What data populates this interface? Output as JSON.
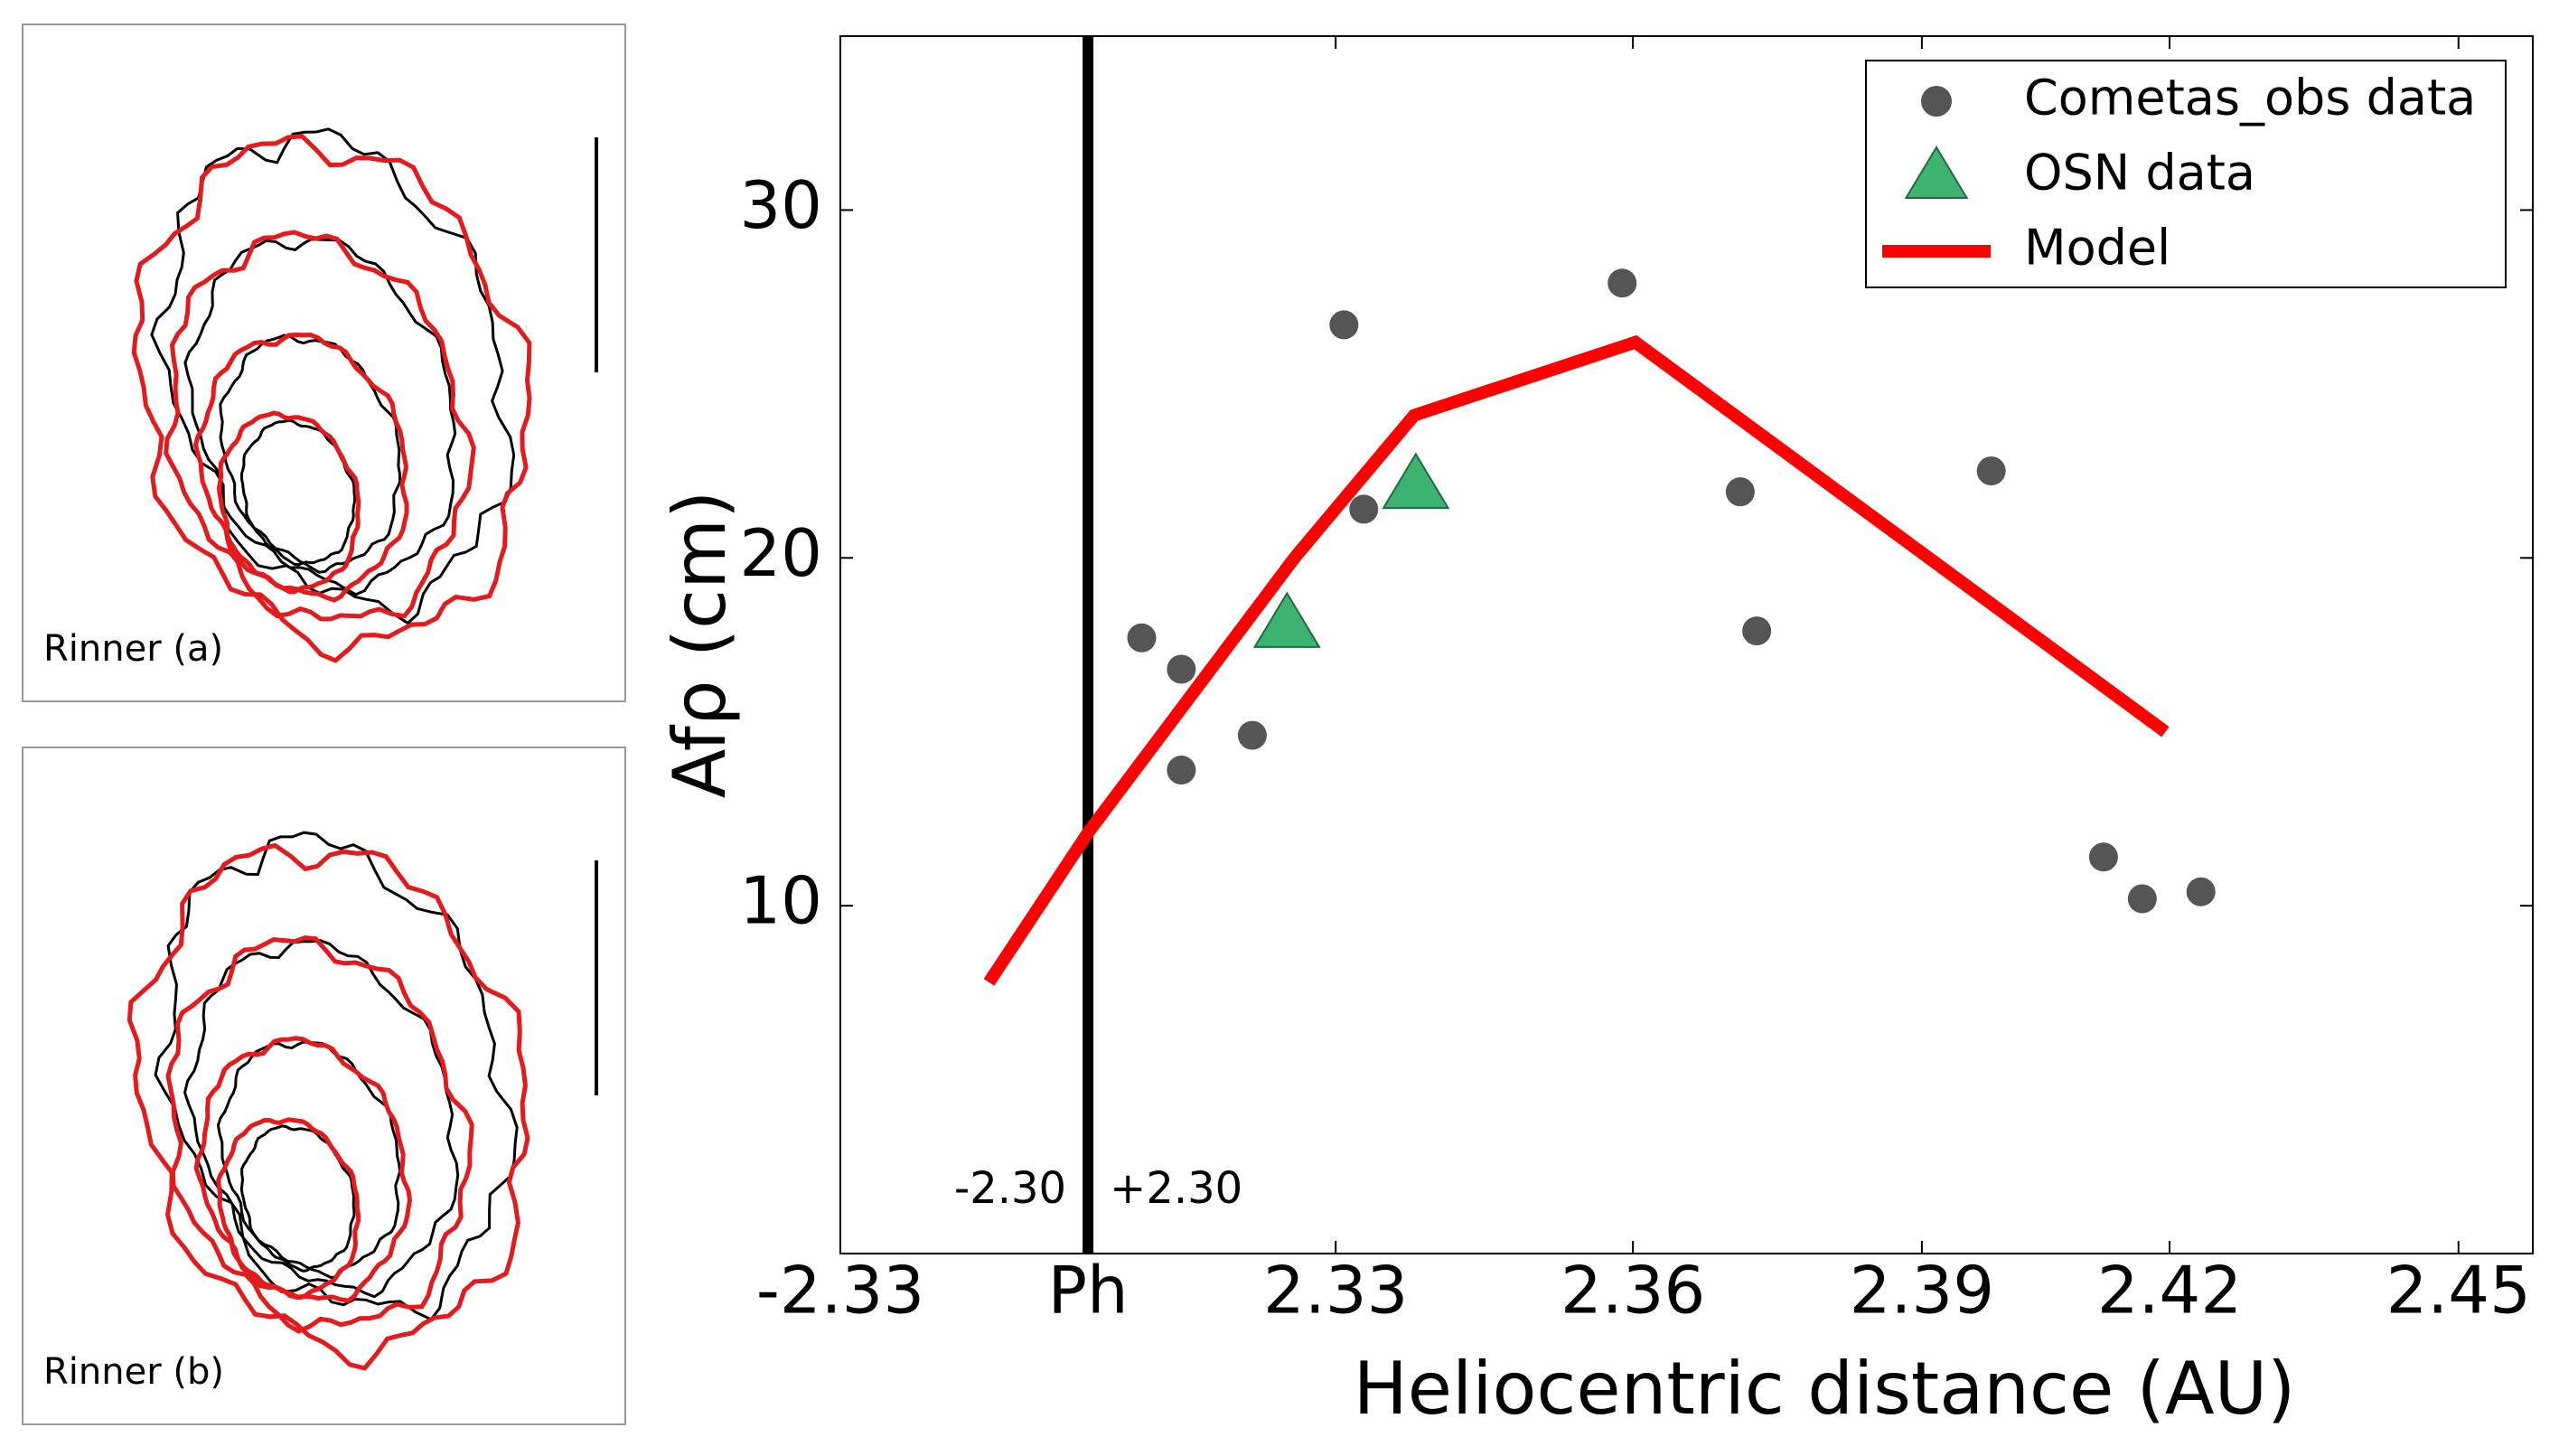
{
  "panels": [
    {
      "label": "Rinner (a)"
    },
    {
      "label": "Rinner (b)"
    }
  ],
  "chart_data": {
    "type": "scatter",
    "xlabel": "Heliocentric distance (AU)",
    "ylabel": "Afρ (cm)",
    "xlim": [
      -0.03,
      0.175
    ],
    "xticks": [
      {
        "value": -0.03,
        "label": "-2.33"
      },
      {
        "value": 0,
        "label": "Ph"
      },
      {
        "value": 0.03,
        "label": "2.33"
      },
      {
        "value": 0.066,
        "label": "2.36"
      },
      {
        "value": 0.101,
        "label": "2.39"
      },
      {
        "value": 0.131,
        "label": "2.42"
      },
      {
        "value": 0.166,
        "label": "2.45"
      }
    ],
    "ylim": [
      0,
      35
    ],
    "yticks": [
      10,
      20,
      30
    ],
    "perihelion": {
      "x": 0,
      "color": "#000000",
      "left_label": "-2.30",
      "right_label": "+2.30"
    },
    "legend": "upper right",
    "series": [
      {
        "name": "Cometas_obs data",
        "type": "scatter",
        "marker": "circle",
        "color": "#555555",
        "x": [
          0.0065,
          0.0113,
          0.0113,
          0.0199,
          0.031,
          0.0334,
          0.0647,
          0.079,
          0.081,
          0.1094,
          0.123,
          0.1277,
          0.1348
        ],
        "values": [
          17.7,
          16.8,
          13.9,
          14.9,
          26.7,
          21.4,
          27.9,
          21.9,
          17.9,
          22.5,
          11.4,
          10.2,
          10.4
        ]
      },
      {
        "name": "OSN data",
        "type": "scatter",
        "marker": "triangle",
        "color": "#3cb371",
        "x": [
          0.0241,
          0.0397
        ],
        "values": [
          18.1,
          22.1
        ]
      },
      {
        "name": "Model",
        "type": "line",
        "color": "#ff0000",
        "x": [
          -0.012,
          0,
          0.025,
          0.0395,
          0.0663,
          0.1305
        ],
        "values": [
          7.8,
          12.1,
          20.0,
          24.1,
          26.2,
          15.0
        ]
      }
    ]
  }
}
